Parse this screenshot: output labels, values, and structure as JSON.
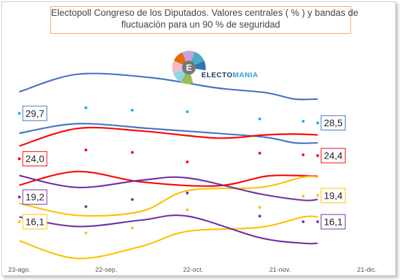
{
  "chart_data": {
    "type": "line",
    "title_line1": "Electopoll Congreso de los Diputados. Valores centrales ( % ) y bandas de",
    "title_line2": "fluctuación para un 90 % de seguridad",
    "logo": {
      "letter": "E",
      "word_part1": "ELECTO",
      "word_part2": "MANIA"
    },
    "x_ticks": [
      "23-ago.",
      "22-sep.",
      "22-oct.",
      "21-nov.",
      "21-dic."
    ],
    "x_tick_days": [
      0,
      30,
      60,
      90,
      120
    ],
    "series": [
      {
        "color": "#2e75b6",
        "band_color": "#4472c4",
        "points": [
          [
            0,
            29.7
          ],
          [
            23,
            30.4
          ],
          [
            39,
            30.1
          ],
          [
            58,
            29.9
          ],
          [
            83,
            29.0
          ],
          [
            98,
            28.7
          ],
          [
            103,
            28.5
          ]
        ],
        "upper": [
          [
            0,
            32.4
          ],
          [
            20,
            34.6
          ],
          [
            45,
            34.2
          ],
          [
            68,
            32.9
          ],
          [
            85,
            32.3
          ],
          [
            95,
            31.5
          ],
          [
            103,
            31.5
          ]
        ],
        "lower": [
          [
            0,
            27.2
          ],
          [
            20,
            28.4
          ],
          [
            45,
            27.8
          ],
          [
            68,
            27.2
          ],
          [
            85,
            26.7
          ],
          [
            95,
            26.0
          ],
          [
            103,
            26.0
          ]
        ],
        "start_label": "29,7",
        "end_label": "28,5"
      },
      {
        "color": "#e00000",
        "band_color": "#ff0000",
        "points": [
          [
            0,
            24.0
          ],
          [
            23,
            25.1
          ],
          [
            39,
            24.8
          ],
          [
            58,
            23.6
          ],
          [
            83,
            24.7
          ],
          [
            98,
            24.5
          ],
          [
            103,
            24.4
          ]
        ],
        "upper": [
          [
            0,
            25.6
          ],
          [
            20,
            27.8
          ],
          [
            42,
            27.5
          ],
          [
            68,
            26.6
          ],
          [
            85,
            27.0
          ],
          [
            95,
            27.1
          ],
          [
            103,
            27.0
          ]
        ],
        "lower": [
          [
            0,
            20.7
          ],
          [
            20,
            22.4
          ],
          [
            42,
            21.1
          ],
          [
            68,
            20.6
          ],
          [
            85,
            21.8
          ],
          [
            95,
            21.9
          ],
          [
            103,
            21.8
          ]
        ],
        "start_label": "24,0",
        "end_label": "24,4"
      },
      {
        "color": "#ffc000",
        "band_color": "#ffc000",
        "points": [
          [
            0,
            16.1
          ],
          [
            23,
            14.7
          ],
          [
            39,
            15.3
          ],
          [
            58,
            17.6
          ],
          [
            83,
            17.9
          ],
          [
            98,
            19.3
          ],
          [
            103,
            19.4
          ]
        ],
        "upper": [
          [
            0,
            18.4
          ],
          [
            20,
            16.9
          ],
          [
            42,
            17.4
          ],
          [
            58,
            20.0
          ],
          [
            83,
            20.4
          ],
          [
            98,
            21.7
          ],
          [
            103,
            21.7
          ]
        ],
        "lower": [
          [
            0,
            13.7
          ],
          [
            20,
            11.5
          ],
          [
            42,
            13.0
          ],
          [
            58,
            14.9
          ],
          [
            83,
            15.4
          ],
          [
            98,
            16.7
          ],
          [
            103,
            16.7
          ]
        ],
        "start_label": "16,1",
        "end_label": "19,4"
      },
      {
        "color": "#7030a0",
        "band_color": "#7030a0",
        "points": [
          [
            0,
            19.2
          ],
          [
            23,
            18.0
          ],
          [
            39,
            18.9
          ],
          [
            58,
            19.7
          ],
          [
            83,
            16.8
          ],
          [
            98,
            16.1
          ],
          [
            103,
            16.1
          ]
        ],
        "upper": [
          [
            0,
            21.9
          ],
          [
            20,
            20.4
          ],
          [
            42,
            21.3
          ],
          [
            58,
            21.6
          ],
          [
            83,
            19.6
          ],
          [
            98,
            18.8
          ],
          [
            103,
            18.9
          ]
        ],
        "lower": [
          [
            0,
            16.7
          ],
          [
            20,
            15.5
          ],
          [
            42,
            16.3
          ],
          [
            58,
            16.8
          ],
          [
            83,
            14.1
          ],
          [
            98,
            13.4
          ],
          [
            103,
            13.4
          ]
        ],
        "start_label": "19,2",
        "end_label": "16,1"
      }
    ],
    "dots": [
      {
        "color": "#00b0f0",
        "x": [
          0,
          23,
          39,
          58,
          83,
          98,
          103
        ],
        "y": [
          29.7,
          30.4,
          30.1,
          29.9,
          29.0,
          28.7,
          28.5
        ]
      },
      {
        "color": "#ff0000",
        "x": [
          0,
          23,
          39,
          58,
          83,
          98,
          103
        ],
        "y": [
          24.0,
          25.1,
          24.8,
          23.6,
          24.7,
          24.5,
          24.4
        ]
      },
      {
        "color": "#ffc000",
        "x": [
          0,
          23,
          39,
          58,
          83,
          98,
          103
        ],
        "y": [
          16.1,
          14.7,
          15.3,
          17.6,
          17.9,
          19.3,
          19.4
        ]
      },
      {
        "color": "#7030a0",
        "x": [
          0,
          23,
          39,
          58,
          83,
          98,
          103
        ],
        "y": [
          19.2,
          18.0,
          18.9,
          19.7,
          16.8,
          16.1,
          16.1
        ]
      }
    ],
    "xlim": [
      0,
      120
    ],
    "ylim": [
      10,
      37
    ],
    "grid": false
  }
}
